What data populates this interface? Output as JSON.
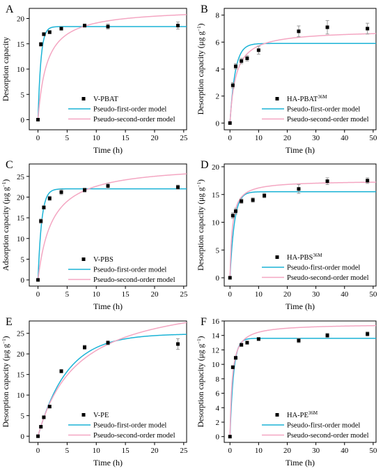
{
  "colors": {
    "first_order": "#1BB3D6",
    "second_order": "#F4A6C2",
    "points": "#000000",
    "error_bar": "#9a9a9a"
  },
  "chart_data": [
    {
      "panel": "A",
      "type": "scatter",
      "xlabel": "Time (h)",
      "ylabel": "Desorption capacity",
      "ylabel_sup": "",
      "xlim": [
        -1.5,
        25.5
      ],
      "ylim": [
        -2,
        22
      ],
      "xticks": [
        0,
        5,
        10,
        15,
        20,
        25
      ],
      "yticks": [
        0,
        5,
        10,
        15,
        20
      ],
      "legend_position": "bottom-right",
      "series": [
        {
          "name": "V-PBAT",
          "name_sup": "",
          "kind": "points",
          "x": [
            0,
            0.5,
            1,
            2,
            4,
            8,
            12,
            24
          ],
          "y": [
            0,
            14.9,
            16.9,
            17.3,
            18.0,
            18.6,
            18.4,
            18.6
          ],
          "err": [
            0,
            0.4,
            0.3,
            0.3,
            0.3,
            0.3,
            0.5,
            0.7
          ]
        },
        {
          "name": "Pseudo-first-order model",
          "kind": "curve",
          "model": "first",
          "qe": 18.4,
          "k": 2.0
        },
        {
          "name": "Pseudo-second-order model",
          "kind": "curve",
          "model": "second",
          "qe": 22.0,
          "k": 0.03
        }
      ]
    },
    {
      "panel": "B",
      "type": "scatter",
      "xlabel": "Time (h)",
      "ylabel": "Desorption capacity (μg g",
      "ylabel_sup": "−1",
      "xlim": [
        -2,
        51
      ],
      "ylim": [
        -0.5,
        8.5
      ],
      "xticks": [
        0,
        10,
        20,
        30,
        40,
        50
      ],
      "yticks": [
        0,
        2,
        4,
        6,
        8
      ],
      "legend_position": "bottom-right",
      "series": [
        {
          "name": "HA-PBAT",
          "name_sup": "36M",
          "kind": "points",
          "x": [
            0,
            1,
            2,
            4,
            6,
            10,
            24,
            34,
            48
          ],
          "y": [
            0,
            2.8,
            4.2,
            4.6,
            4.8,
            5.4,
            6.8,
            7.1,
            7.0
          ],
          "err": [
            0,
            0.2,
            0.2,
            0.2,
            0.2,
            0.3,
            0.4,
            0.5,
            0.4
          ]
        },
        {
          "name": "Pseudo-first-order model",
          "kind": "curve",
          "model": "first",
          "qe": 5.9,
          "k": 0.55
        },
        {
          "name": "Pseudo-second-order model",
          "kind": "curve",
          "model": "second",
          "qe": 6.9,
          "k": 0.07
        }
      ]
    },
    {
      "panel": "C",
      "type": "scatter",
      "xlabel": "Time (h)",
      "ylabel": "Adsorption capacity (μg g",
      "ylabel_sup": "−1",
      "xlim": [
        -1.5,
        25.5
      ],
      "ylim": [
        -1.5,
        28
      ],
      "xticks": [
        0,
        5,
        10,
        15,
        20,
        25
      ],
      "yticks": [
        0,
        5,
        10,
        15,
        20,
        25
      ],
      "legend_position": "bottom-right",
      "series": [
        {
          "name": "V-PBS",
          "name_sup": "",
          "kind": "points",
          "x": [
            0,
            0.5,
            1,
            2,
            4,
            8,
            12,
            24
          ],
          "y": [
            0,
            14.2,
            17.5,
            19.7,
            21.2,
            21.7,
            22.7,
            22.4
          ],
          "err": [
            0,
            0.5,
            0.4,
            0.5,
            0.6,
            0.5,
            0.6,
            0.5
          ]
        },
        {
          "name": "Pseudo-first-order model",
          "kind": "curve",
          "model": "first",
          "qe": 22.0,
          "k": 1.6
        },
        {
          "name": "Pseudo-second-order model",
          "kind": "curve",
          "model": "second",
          "qe": 28.0,
          "k": 0.015
        }
      ]
    },
    {
      "panel": "D",
      "type": "scatter",
      "xlabel": "Time (h)",
      "ylabel": "Desorption capacity (μg g",
      "ylabel_sup": "−1",
      "xlim": [
        -2,
        51
      ],
      "ylim": [
        -1.5,
        20.5
      ],
      "xticks": [
        0,
        10,
        20,
        30,
        40,
        50
      ],
      "yticks": [
        0,
        5,
        10,
        15,
        20
      ],
      "legend_position": "bottom-right",
      "series": [
        {
          "name": "HA-PBS",
          "name_sup": "36M",
          "kind": "points",
          "x": [
            0,
            1,
            2,
            4,
            8,
            12,
            24,
            34,
            48
          ],
          "y": [
            0,
            11.2,
            12.0,
            13.8,
            14.0,
            14.8,
            16.0,
            17.4,
            17.5
          ],
          "err": [
            0,
            0.5,
            0.5,
            0.4,
            0.4,
            0.4,
            0.8,
            0.6,
            0.5
          ]
        },
        {
          "name": "Pseudo-first-order model",
          "kind": "curve",
          "model": "first",
          "qe": 15.5,
          "k": 0.65
        },
        {
          "name": "Pseudo-second-order model",
          "kind": "curve",
          "model": "second",
          "qe": 17.5,
          "k": 0.07
        }
      ]
    },
    {
      "panel": "E",
      "type": "scatter",
      "xlabel": "Time (h)",
      "ylabel": "Desorption capacity (μg g",
      "ylabel_sup": "−1",
      "xlim": [
        -1.5,
        25.5
      ],
      "ylim": [
        -1.5,
        28
      ],
      "xticks": [
        0,
        5,
        10,
        15,
        20,
        25
      ],
      "yticks": [
        0,
        5,
        10,
        15,
        20,
        25
      ],
      "legend_position": "bottom-right",
      "series": [
        {
          "name": "V-PE",
          "name_sup": "",
          "kind": "points",
          "x": [
            0,
            0.5,
            1,
            2,
            4,
            8,
            12,
            24
          ],
          "y": [
            0,
            2.3,
            4.6,
            7.2,
            15.8,
            21.6,
            22.7,
            22.4
          ],
          "err": [
            0,
            0.2,
            0.2,
            0.3,
            0.4,
            0.5,
            0.5,
            1.3
          ]
        },
        {
          "name": "Pseudo-first-order model",
          "kind": "curve",
          "model": "first",
          "qe": 24.9,
          "k": 0.2
        },
        {
          "name": "Pseudo-second-order model",
          "kind": "curve",
          "model": "second",
          "qe": 35.0,
          "k": 0.0042
        }
      ]
    },
    {
      "panel": "F",
      "type": "scatter",
      "xlabel": "Time (h)",
      "ylabel": "Desorption capacity (μg g",
      "ylabel_sup": "−1",
      "xlim": [
        -2,
        51
      ],
      "ylim": [
        -0.8,
        16
      ],
      "xticks": [
        0,
        10,
        20,
        30,
        40,
        50
      ],
      "yticks": [
        0,
        2,
        4,
        6,
        8,
        10,
        12,
        14,
        16
      ],
      "legend_position": "bottom-right",
      "series": [
        {
          "name": "HA-PE",
          "name_sup": "36M",
          "kind": "points",
          "x": [
            0,
            1,
            2,
            4,
            6,
            10,
            24,
            34,
            48
          ],
          "y": [
            0,
            9.6,
            10.9,
            12.7,
            13.0,
            13.5,
            13.3,
            14.0,
            14.2
          ],
          "err": [
            0,
            0.2,
            0.2,
            0.2,
            0.2,
            0.2,
            0.3,
            0.3,
            0.3
          ]
        },
        {
          "name": "Pseudo-first-order model",
          "kind": "curve",
          "model": "first",
          "qe": 13.6,
          "k": 0.8
        },
        {
          "name": "Pseudo-second-order model",
          "kind": "curve",
          "model": "second",
          "qe": 15.6,
          "k": 0.08
        }
      ]
    }
  ]
}
